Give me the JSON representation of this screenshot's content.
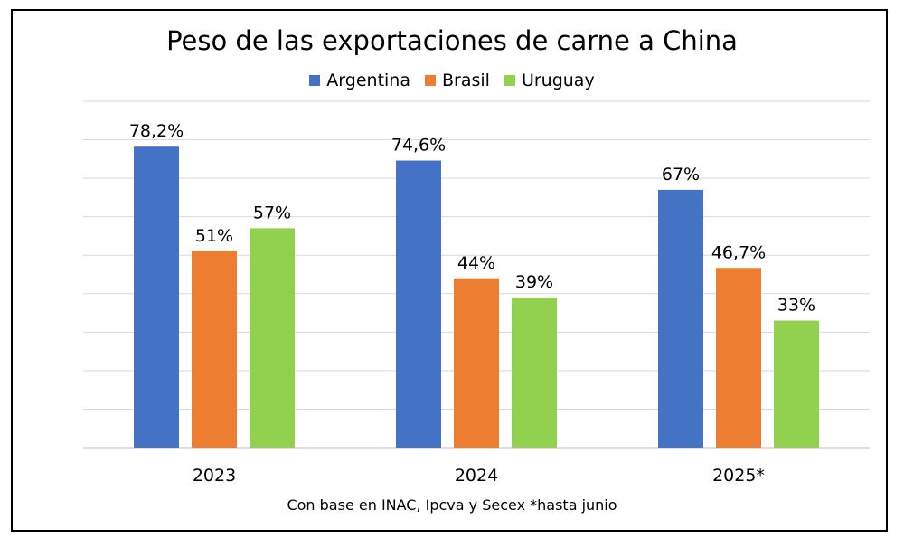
{
  "chart_data": {
    "type": "bar",
    "title": "Peso de las exportaciones de carne a China",
    "categories": [
      "2023",
      "2024",
      "2025*"
    ],
    "series": [
      {
        "name": "Argentina",
        "values": [
          78.2,
          74.6,
          67
        ],
        "labels": [
          "78,2%",
          "74,6%",
          "67%"
        ],
        "color": "#4472C4"
      },
      {
        "name": "Brasil",
        "values": [
          51,
          44,
          46.7
        ],
        "labels": [
          "51%",
          "44%",
          "46,7%"
        ],
        "color": "#ED7D31"
      },
      {
        "name": "Uruguay",
        "values": [
          57,
          39,
          33
        ],
        "labels": [
          "57%",
          "39%",
          "33%"
        ],
        "color": "#92D050"
      }
    ],
    "ylim": [
      0,
      90
    ],
    "grid": true,
    "legend_position": "top",
    "source_note": "Con base en INAC,  Ipcva y Secex *hasta junio"
  }
}
